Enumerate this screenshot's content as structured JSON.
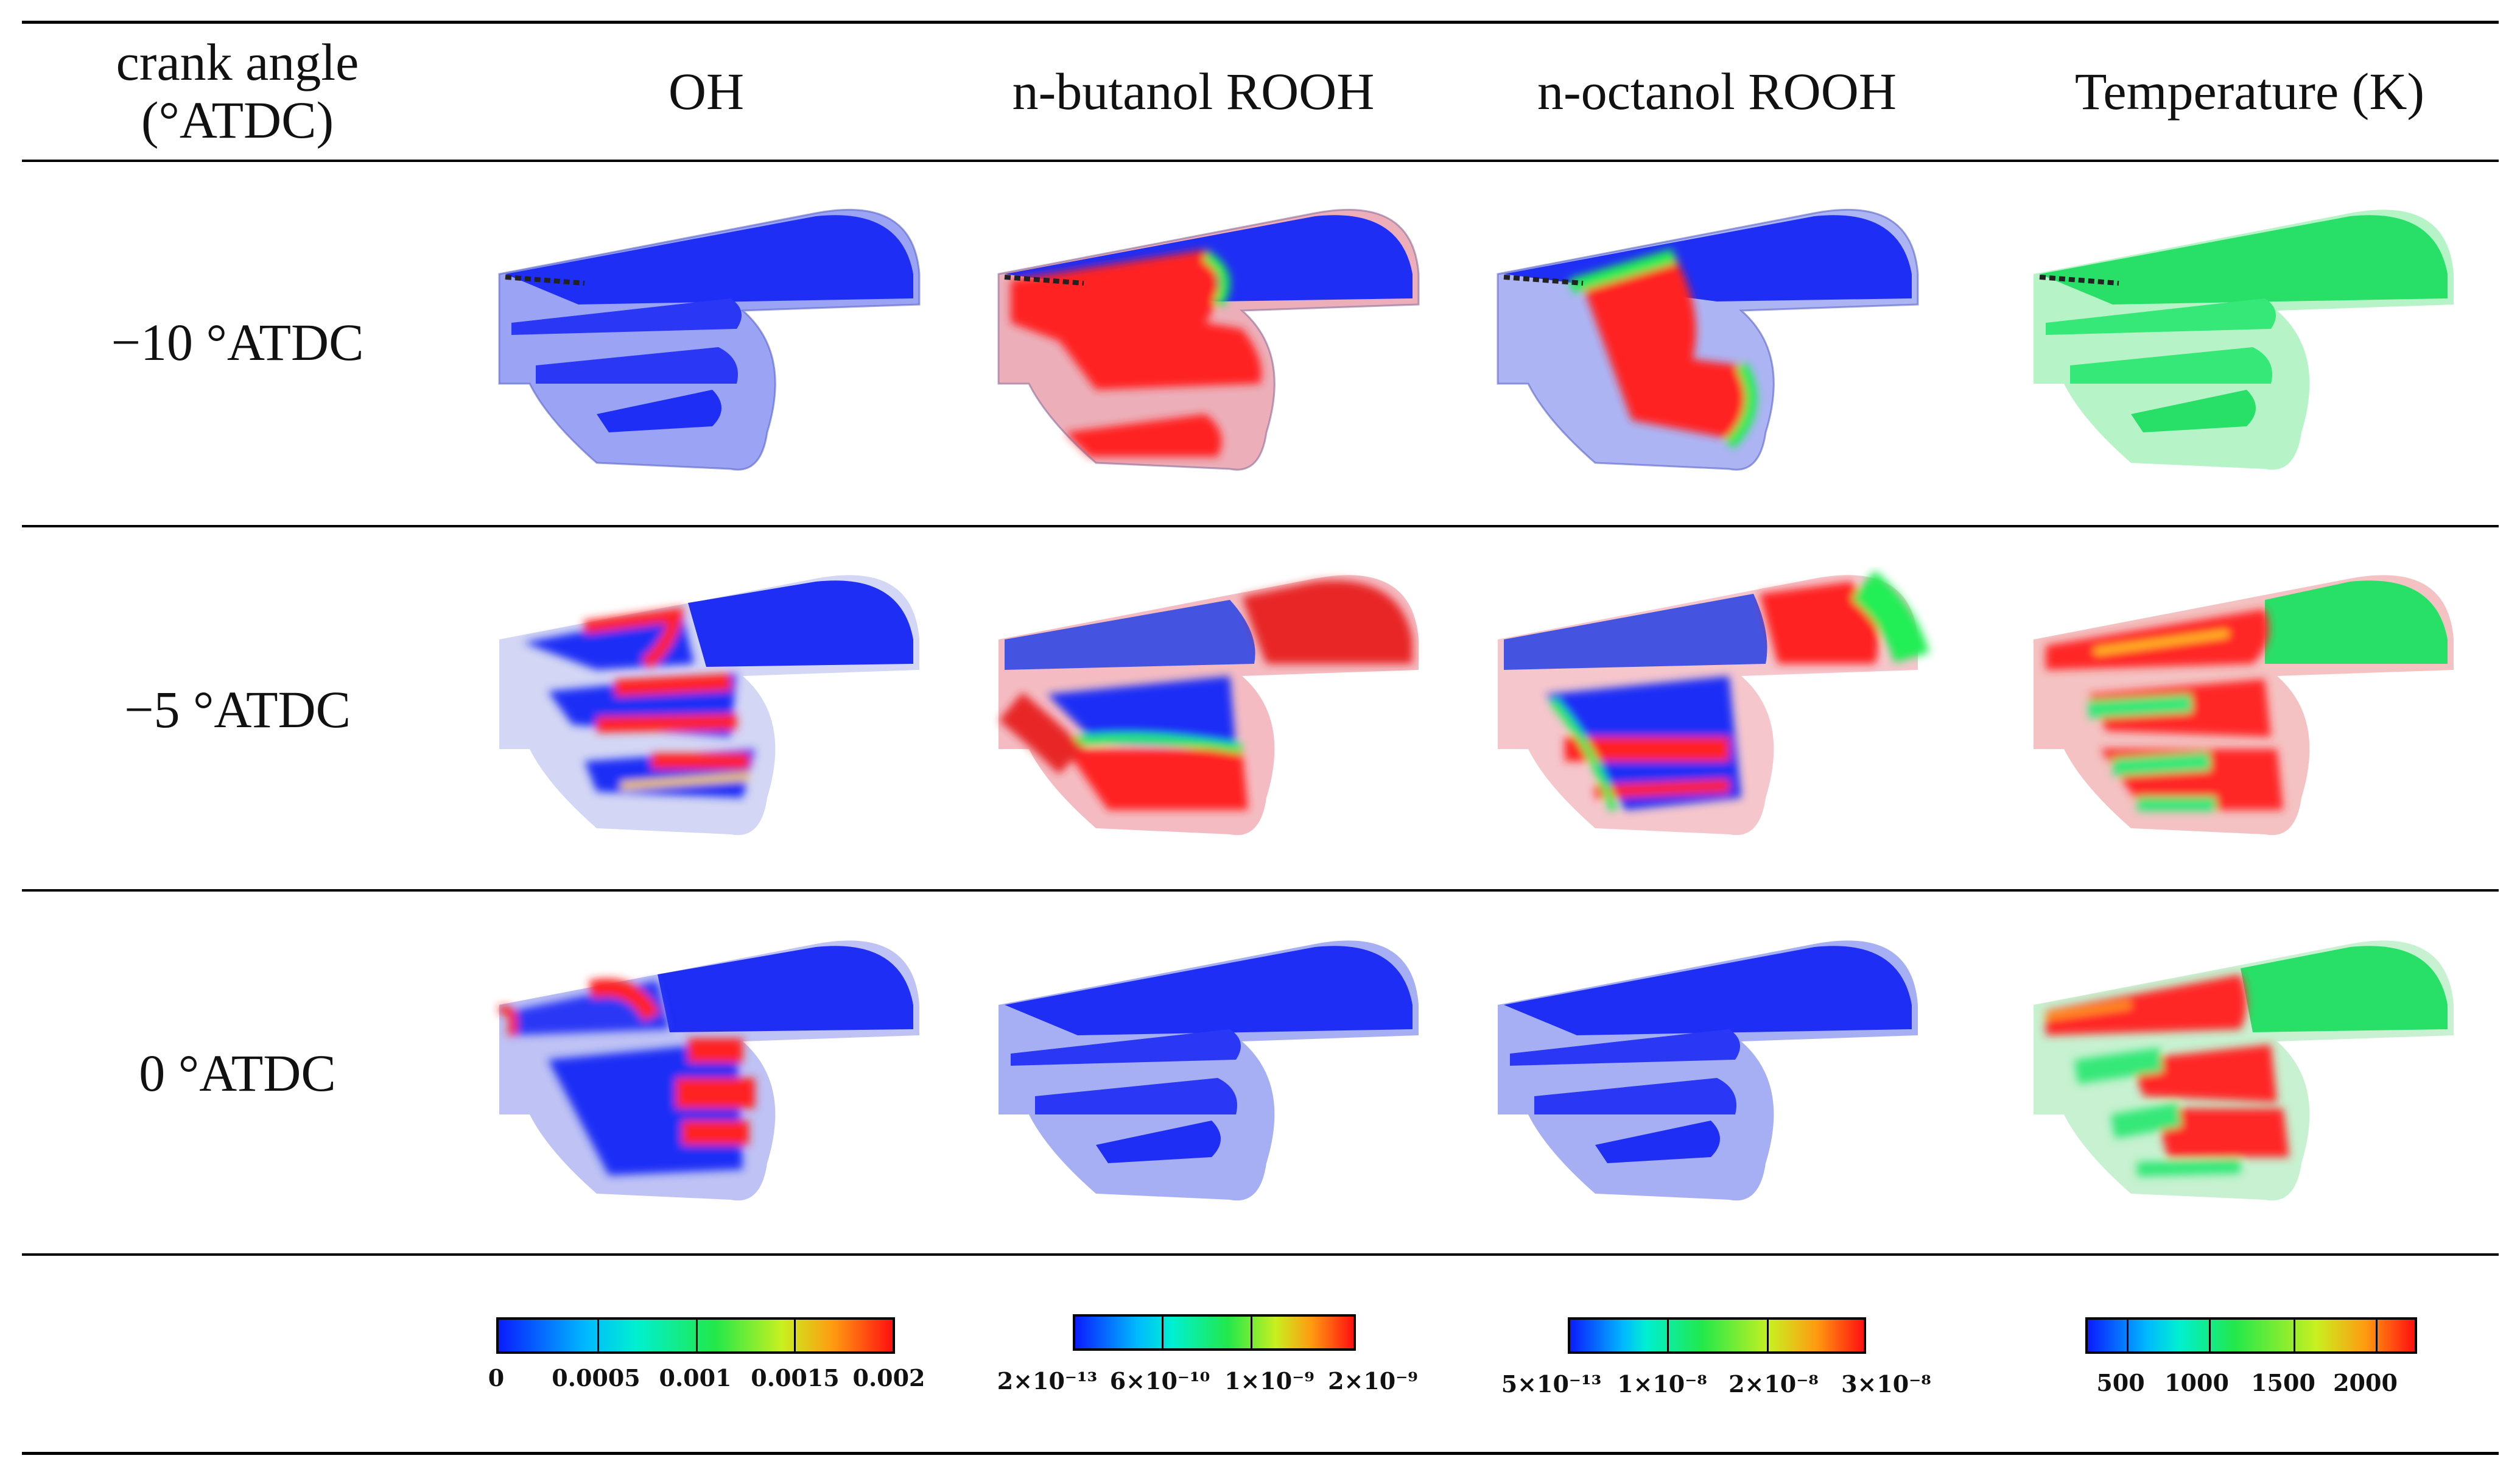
{
  "headers": {
    "crank_line1": "crank angle",
    "crank_line2": "(°ATDC)",
    "oh": "OH",
    "butanol": "n-butanol ROOH",
    "octanol": "n-octanol ROOH",
    "temperature": "Temperature (K)"
  },
  "rows": [
    {
      "label": "−10 °ATDC"
    },
    {
      "label": "−5 °ATDC"
    },
    {
      "label": "0 °ATDC"
    }
  ],
  "colorbars": {
    "oh": [
      "0",
      "0.0005",
      "0.001",
      "0.0015",
      "0.002"
    ],
    "butanol": [
      "2×10⁻¹³",
      "6×10⁻¹⁰",
      "1×10⁻⁹",
      "2×10⁻⁹"
    ],
    "octanol": [
      "5×10⁻¹³",
      "1×10⁻⁸",
      "2×10⁻⁸",
      "3×10⁻⁸"
    ],
    "temperature": [
      "500",
      "1000",
      "1500",
      "2000"
    ]
  },
  "colors": {
    "low": "#1a2cff",
    "high": "#ff1e1e",
    "mid": "#22ee55"
  }
}
